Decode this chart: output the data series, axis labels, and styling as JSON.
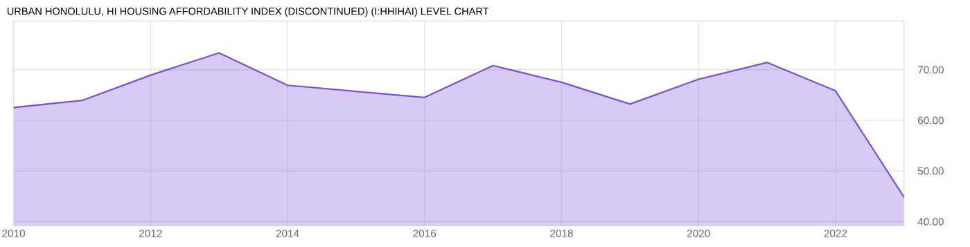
{
  "chart_data": {
    "type": "area",
    "title": "URBAN HONOLULU, HI HOUSING AFFORDABILITY INDEX (DISCONTINUED) (I:HHIHAI) LEVEL CHART",
    "x": [
      2010,
      2011,
      2012,
      2013,
      2014,
      2016,
      2017,
      2018,
      2019,
      2020,
      2021,
      2022,
      2023
    ],
    "series": [
      {
        "color": "#7b4fd9",
        "values": [
          62.5,
          63.9,
          68.9,
          73.3,
          66.9,
          64.5,
          70.8,
          67.5,
          63.2,
          68.1,
          71.4,
          65.8,
          44.8
        ]
      }
    ],
    "xlim": [
      2010,
      2023
    ],
    "xticks": [
      2010,
      2012,
      2014,
      2016,
      2018,
      2020,
      2022
    ],
    "ylim": [
      39.1,
      79.6
    ],
    "yticks": [
      {
        "value": 40,
        "label": "40.00"
      },
      {
        "value": 50,
        "label": "50.00"
      },
      {
        "value": 60,
        "label": "60.00"
      },
      {
        "value": 70,
        "label": "70.00"
      }
    ],
    "grid": true,
    "legend": false
  }
}
